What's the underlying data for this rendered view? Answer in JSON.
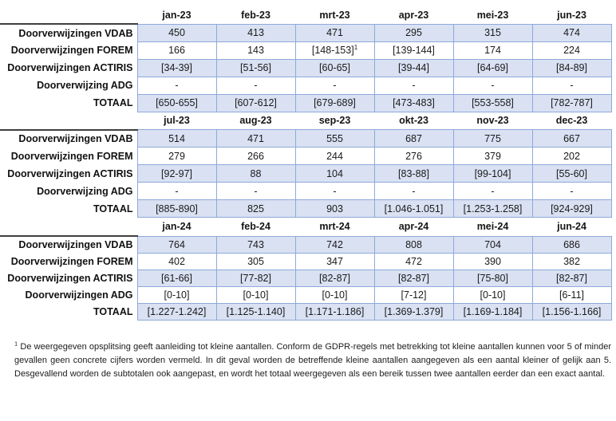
{
  "colors": {
    "row_fill": "#D9E1F2",
    "grid_border": "#8EA9DB",
    "label_top_border": "#3f3f3f"
  },
  "tables": [
    {
      "id": "2023-h1",
      "months": [
        "jan-23",
        "feb-23",
        "mrt-23",
        "apr-23",
        "mei-23",
        "jun-23"
      ],
      "rows": [
        {
          "label": "Doorverwijzingen VDAB",
          "shaded": true,
          "values": [
            "450",
            "413",
            "471",
            "295",
            "315",
            "474"
          ]
        },
        {
          "label": "Doorverwijzingen FOREM",
          "shaded": false,
          "sup_col": 2,
          "sup_marker": "1",
          "values": [
            "166",
            "143",
            "[148-153]",
            "[139-144]",
            "174",
            "224"
          ]
        },
        {
          "label": "Doorverwijzingen ACTIRIS",
          "shaded": true,
          "values": [
            "[34-39]",
            "[51-56]",
            "[60-65]",
            "[39-44]",
            "[64-69]",
            "[84-89]"
          ]
        },
        {
          "label": "Doorverwijzing ADG",
          "shaded": false,
          "values": [
            "-",
            "-",
            "-",
            "-",
            "-",
            "-"
          ]
        },
        {
          "label": "TOTAAL",
          "shaded": true,
          "values": [
            "[650-655]",
            "[607-612]",
            "[679-689]",
            "[473-483]",
            "[553-558]",
            "[782-787]"
          ]
        }
      ]
    },
    {
      "id": "2023-h2",
      "months": [
        "jul-23",
        "aug-23",
        "sep-23",
        "okt-23",
        "nov-23",
        "dec-23"
      ],
      "rows": [
        {
          "label": "Doorverwijzingen VDAB",
          "shaded": true,
          "values": [
            "514",
            "471",
            "555",
            "687",
            "775",
            "667"
          ]
        },
        {
          "label": "Doorverwijzingen FOREM",
          "shaded": false,
          "values": [
            "279",
            "266",
            "244",
            "276",
            "379",
            "202"
          ]
        },
        {
          "label": "Doorverwijzingen ACTIRIS",
          "shaded": true,
          "values": [
            "[92-97]",
            "88",
            "104",
            "[83-88]",
            "[99-104]",
            "[55-60]"
          ]
        },
        {
          "label": "Doorverwijzing ADG",
          "shaded": false,
          "values": [
            "-",
            "-",
            "-",
            "-",
            "-",
            "-"
          ]
        },
        {
          "label": "TOTAAL",
          "shaded": true,
          "values": [
            "[885-890]",
            "825",
            "903",
            "[1.046-1.051]",
            "[1.253-1.258]",
            "[924-929]"
          ]
        }
      ]
    },
    {
      "id": "2024-h1",
      "months": [
        "jan-24",
        "feb-24",
        "mrt-24",
        "apr-24",
        "mei-24",
        "jun-24"
      ],
      "rows": [
        {
          "label": "Doorverwijzingen VDAB",
          "shaded": true,
          "values": [
            "764",
            "743",
            "742",
            "808",
            "704",
            "686"
          ]
        },
        {
          "label": "Doorverwijzingen FOREM",
          "shaded": false,
          "values": [
            "402",
            "305",
            "347",
            "472",
            "390",
            "382"
          ]
        },
        {
          "label": "Doorverwijzingen ACTIRIS",
          "shaded": true,
          "values": [
            "[61-66]",
            "[77-82]",
            "[82-87]",
            "[82-87]",
            "[75-80]",
            "[82-87]"
          ]
        },
        {
          "label": "Doorverwijzingen ADG",
          "shaded": false,
          "values": [
            "[0-10]",
            "[0-10]",
            "[0-10]",
            "[7-12]",
            "[0-10]",
            "[6-11]"
          ]
        },
        {
          "label": "TOTAAL",
          "shaded": true,
          "values": [
            "[1.227-1.242]",
            "[1.125-1.140]",
            "[1.171-1.186]",
            "[1.369-1.379]",
            "[1.169-1.184]",
            "[1.156-1.166]"
          ]
        }
      ]
    }
  ],
  "footnote": {
    "marker": "1",
    "text": "De weergegeven opsplitsing geeft aanleiding tot kleine aantallen. Conform de GDPR-regels met betrekking tot kleine aantallen kunnen voor 5 of minder gevallen geen concrete cijfers worden vermeld. In dit geval worden de betreffende kleine aantallen aangegeven als een aantal kleiner of gelijk aan 5. Desgevallend worden de subtotalen ook aangepast, en wordt het totaal weergegeven als een bereik tussen twee aantallen eerder dan een exact aantal."
  }
}
